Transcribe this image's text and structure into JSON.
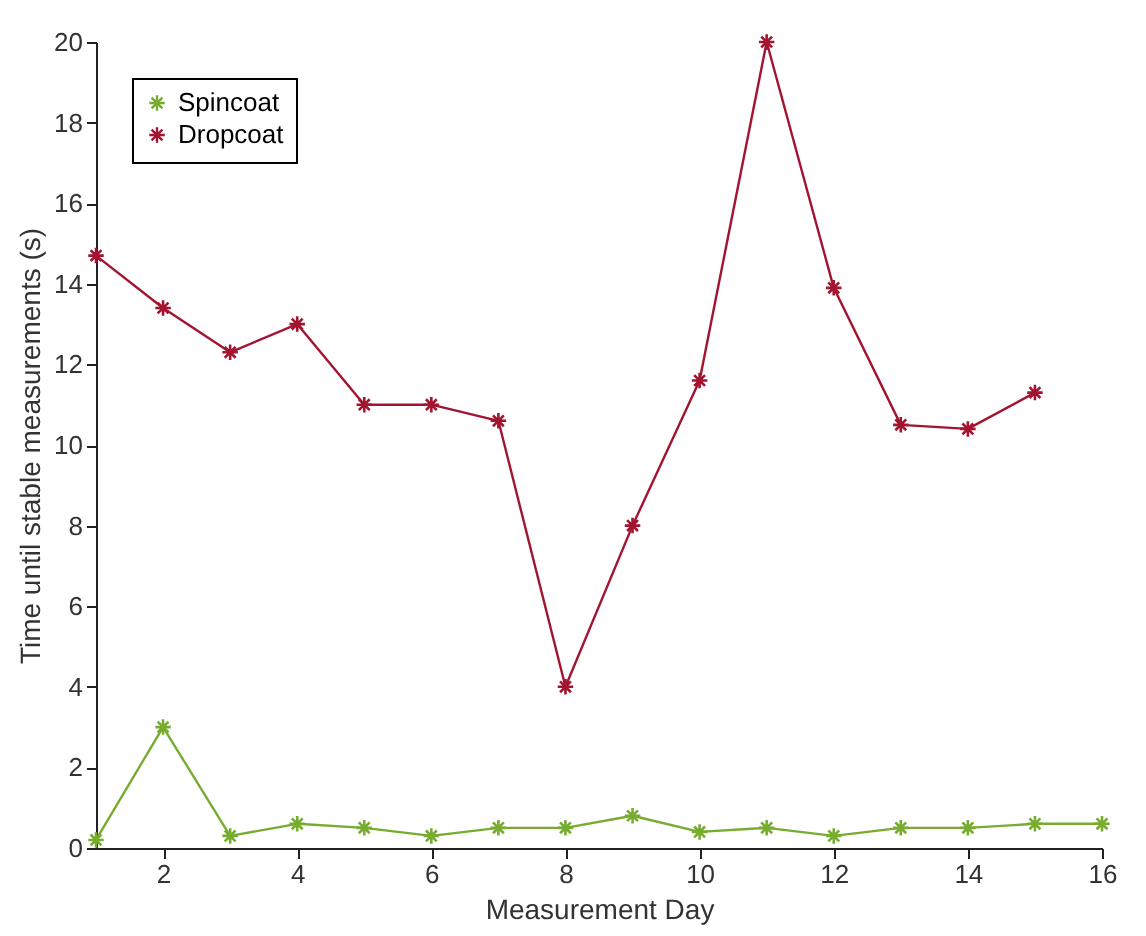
{
  "chart_data": {
    "type": "line",
    "xlabel": "Measurement Day",
    "ylabel": "Time until stable measurements (s)",
    "xlim": [
      1,
      16
    ],
    "xticks": [
      2,
      4,
      6,
      8,
      10,
      12,
      14,
      16
    ],
    "ylim": [
      0,
      20
    ],
    "yticks": [
      0,
      2,
      4,
      6,
      8,
      10,
      12,
      14,
      16,
      18,
      20
    ],
    "grid": false,
    "legend": "top left",
    "marker": "cross",
    "line_style": "solid",
    "series": [
      {
        "name": "Spincoat",
        "color": "#77ac30",
        "x": [
          1,
          2,
          3,
          4,
          5,
          6,
          7,
          8,
          9,
          10,
          11,
          12,
          13,
          14,
          15,
          16
        ],
        "values": [
          0.2,
          3.0,
          0.3,
          0.6,
          0.5,
          0.3,
          0.5,
          0.5,
          0.8,
          0.4,
          0.5,
          0.3,
          0.5,
          0.5,
          0.6,
          0.6
        ]
      },
      {
        "name": "Dropcoat",
        "color": "#a2142f",
        "x": [
          1,
          2,
          3,
          4,
          5,
          6,
          7,
          8,
          9,
          10,
          11,
          12,
          13,
          14,
          15
        ],
        "values": [
          14.7,
          13.4,
          12.3,
          13.0,
          11.0,
          11.0,
          10.6,
          4.0,
          8.0,
          11.6,
          20.0,
          13.9,
          10.5,
          10.4,
          11.3
        ]
      }
    ]
  }
}
